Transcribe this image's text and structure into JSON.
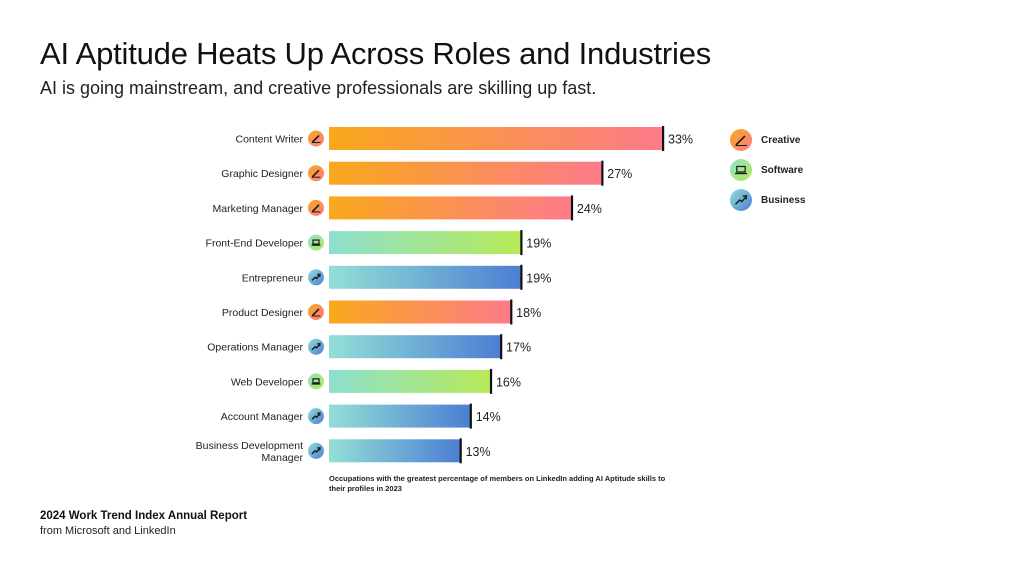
{
  "header": {
    "title": "AI Aptitude Heats Up Across Roles and Industries",
    "subtitle": "AI is going mainstream, and creative professionals are skilling up fast."
  },
  "colors": {
    "creative": [
      "#f9a81b",
      "#fd7b8a"
    ],
    "software": [
      "#8ee0cf",
      "#b6ea57"
    ],
    "business": [
      "#93dfd6",
      "#4c7ed3"
    ]
  },
  "legend": [
    {
      "key": "creative",
      "label": "Creative",
      "icon": "pencil-icon"
    },
    {
      "key": "software",
      "label": "Software",
      "icon": "laptop-icon"
    },
    {
      "key": "business",
      "label": "Business",
      "icon": "trend-arrow-icon"
    }
  ],
  "chart_data": {
    "type": "bar",
    "orientation": "horizontal",
    "xlim": [
      0,
      33
    ],
    "categories": [
      "Content Writer",
      "Graphic Designer",
      "Marketing Manager",
      "Front-End Developer",
      "Entrepreneur",
      "Product Designer",
      "Operations Manager",
      "Web Developer",
      "Account Manager",
      "Business Development Manager"
    ],
    "category_lines": [
      [
        "Content Writer"
      ],
      [
        "Graphic Designer"
      ],
      [
        "Marketing Manager"
      ],
      [
        "Front-End Developer"
      ],
      [
        "Entrepreneur"
      ],
      [
        "Product Designer"
      ],
      [
        "Operations Manager"
      ],
      [
        "Web Developer"
      ],
      [
        "Account Manager"
      ],
      [
        "Business Development",
        "Manager"
      ]
    ],
    "groups": [
      "creative",
      "creative",
      "creative",
      "software",
      "business",
      "creative",
      "business",
      "software",
      "business",
      "business"
    ],
    "values": [
      33,
      27,
      24,
      19,
      19,
      18,
      17,
      16,
      14,
      13
    ],
    "value_labels": [
      "33%",
      "27%",
      "24%",
      "19%",
      "19%",
      "18%",
      "17%",
      "16%",
      "14%",
      "13%"
    ],
    "legend_position": "top-right"
  },
  "footer": {
    "note": "Occupations with the greatest percentage of members on LinkedIn adding AI Aptitude skills to their profiles in 2023",
    "source_title": "2024 Work Trend Index Annual Report",
    "source_sub": "from Microsoft and LinkedIn"
  }
}
